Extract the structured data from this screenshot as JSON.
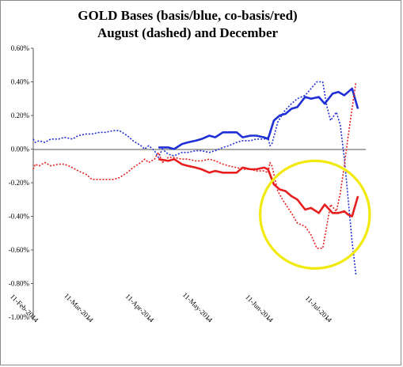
{
  "chart_data": {
    "type": "line",
    "title": "GOLD Bases (basis/blue, co-basis/red)",
    "subtitle": "August (dashed) and December",
    "xlabel": "",
    "ylabel": "",
    "x_dates": [
      "2014-02-11",
      "2014-03-11",
      "2014-04-11",
      "2014-05-11",
      "2014-06-11",
      "2014-07-11"
    ],
    "x_tick_labels": [
      "11-Feb-2014",
      "11-Mar-2014",
      "11-Apr-2014",
      "11-May-2014",
      "11-Jun-2014",
      "11-Jul-2014"
    ],
    "xlim": [
      "2014-02-11",
      "2014-07-31"
    ],
    "ylim": [
      -1.0,
      0.6
    ],
    "y_ticks": [
      0.6,
      0.4,
      0.2,
      0.0,
      -0.2,
      -0.4,
      -0.6,
      -0.8,
      -1.0
    ],
    "y_tick_labels": [
      "0.60%",
      "0.40%",
      "0.20%",
      "0.00%",
      "-0.20%",
      "-0.40%",
      "-0.60%",
      "-0.80%",
      "-1.00%"
    ],
    "grid": false,
    "series": [
      {
        "key": "aug_basis",
        "color": "#1f2fd6",
        "style": "dashed",
        "points": [
          [
            "2014-02-11",
            0.06
          ],
          [
            "2014-02-12",
            0.04
          ],
          [
            "2014-02-14",
            0.05
          ],
          [
            "2014-02-17",
            0.04
          ],
          [
            "2014-02-20",
            0.06
          ],
          [
            "2014-02-24",
            0.06
          ],
          [
            "2014-02-27",
            0.07
          ],
          [
            "2014-03-03",
            0.06
          ],
          [
            "2014-03-06",
            0.08
          ],
          [
            "2014-03-10",
            0.09
          ],
          [
            "2014-03-13",
            0.09
          ],
          [
            "2014-03-17",
            0.1
          ],
          [
            "2014-03-20",
            0.1
          ],
          [
            "2014-03-24",
            0.11
          ],
          [
            "2014-03-27",
            0.11
          ],
          [
            "2014-03-31",
            0.08
          ],
          [
            "2014-04-03",
            0.05
          ],
          [
            "2014-04-07",
            0.02
          ],
          [
            "2014-04-09",
            0.0
          ],
          [
            "2014-04-11",
            0.02
          ],
          [
            "2014-04-14",
            -0.01
          ],
          [
            "2014-04-16",
            -0.05
          ],
          [
            "2014-04-18",
            0.0
          ],
          [
            "2014-04-21",
            -0.03
          ],
          [
            "2014-04-24",
            -0.04
          ],
          [
            "2014-04-28",
            -0.02
          ],
          [
            "2014-05-01",
            -0.02
          ],
          [
            "2014-05-05",
            -0.01
          ],
          [
            "2014-05-08",
            -0.01
          ],
          [
            "2014-05-12",
            -0.02
          ],
          [
            "2014-05-15",
            -0.01
          ],
          [
            "2014-05-19",
            0.01
          ],
          [
            "2014-05-22",
            0.02
          ],
          [
            "2014-05-26",
            0.04
          ],
          [
            "2014-05-29",
            0.05
          ],
          [
            "2014-06-02",
            0.05
          ],
          [
            "2014-06-05",
            0.06
          ],
          [
            "2014-06-09",
            0.06
          ],
          [
            "2014-06-11",
            0.07
          ],
          [
            "2014-06-12",
            0.02
          ],
          [
            "2014-06-13",
            0.03
          ],
          [
            "2014-06-16",
            0.16
          ],
          [
            "2014-06-19",
            0.22
          ],
          [
            "2014-06-23",
            0.27
          ],
          [
            "2014-06-26",
            0.3
          ],
          [
            "2014-06-30",
            0.32
          ],
          [
            "2014-07-03",
            0.36
          ],
          [
            "2014-07-06",
            0.4
          ],
          [
            "2014-07-09",
            0.4
          ],
          [
            "2014-07-11",
            0.26
          ],
          [
            "2014-07-13",
            0.17
          ],
          [
            "2014-07-16",
            0.22
          ],
          [
            "2014-07-18",
            0.14
          ],
          [
            "2014-07-20",
            -0.05
          ],
          [
            "2014-07-22",
            -0.3
          ],
          [
            "2014-07-24",
            -0.55
          ],
          [
            "2014-07-26",
            -0.75
          ]
        ]
      },
      {
        "key": "dec_basis",
        "color": "#1f2fd6",
        "style": "solid",
        "points": [
          [
            "2014-04-16",
            0.01
          ],
          [
            "2014-04-21",
            0.01
          ],
          [
            "2014-04-24",
            0.0
          ],
          [
            "2014-04-28",
            0.03
          ],
          [
            "2014-05-01",
            0.04
          ],
          [
            "2014-05-05",
            0.05
          ],
          [
            "2014-05-08",
            0.06
          ],
          [
            "2014-05-12",
            0.08
          ],
          [
            "2014-05-15",
            0.07
          ],
          [
            "2014-05-19",
            0.1
          ],
          [
            "2014-05-22",
            0.1
          ],
          [
            "2014-05-26",
            0.1
          ],
          [
            "2014-05-29",
            0.07
          ],
          [
            "2014-06-02",
            0.08
          ],
          [
            "2014-06-05",
            0.08
          ],
          [
            "2014-06-09",
            0.07
          ],
          [
            "2014-06-11",
            0.06
          ],
          [
            "2014-06-14",
            0.17
          ],
          [
            "2014-06-17",
            0.2
          ],
          [
            "2014-06-20",
            0.21
          ],
          [
            "2014-06-23",
            0.24
          ],
          [
            "2014-06-26",
            0.25
          ],
          [
            "2014-06-30",
            0.31
          ],
          [
            "2014-07-03",
            0.3
          ],
          [
            "2014-07-07",
            0.31
          ],
          [
            "2014-07-10",
            0.27
          ],
          [
            "2014-07-14",
            0.33
          ],
          [
            "2014-07-17",
            0.34
          ],
          [
            "2014-07-20",
            0.32
          ],
          [
            "2014-07-22",
            0.34
          ],
          [
            "2014-07-24",
            0.36
          ],
          [
            "2014-07-27",
            0.24
          ]
        ]
      },
      {
        "key": "aug_cobasis",
        "color": "#e81e1e",
        "style": "dashed",
        "points": [
          [
            "2014-02-11",
            -0.12
          ],
          [
            "2014-02-12",
            -0.09
          ],
          [
            "2014-02-14",
            -0.1
          ],
          [
            "2014-02-17",
            -0.08
          ],
          [
            "2014-02-20",
            -0.1
          ],
          [
            "2014-02-24",
            -0.09
          ],
          [
            "2014-02-27",
            -0.09
          ],
          [
            "2014-03-03",
            -0.11
          ],
          [
            "2014-03-06",
            -0.13
          ],
          [
            "2014-03-10",
            -0.15
          ],
          [
            "2014-03-13",
            -0.18
          ],
          [
            "2014-03-17",
            -0.18
          ],
          [
            "2014-03-20",
            -0.18
          ],
          [
            "2014-03-24",
            -0.18
          ],
          [
            "2014-03-27",
            -0.17
          ],
          [
            "2014-03-31",
            -0.14
          ],
          [
            "2014-04-03",
            -0.11
          ],
          [
            "2014-04-07",
            -0.08
          ],
          [
            "2014-04-09",
            -0.06
          ],
          [
            "2014-04-11",
            -0.08
          ],
          [
            "2014-04-14",
            -0.06
          ],
          [
            "2014-04-16",
            -0.02
          ],
          [
            "2014-04-18",
            -0.08
          ],
          [
            "2014-04-21",
            -0.05
          ],
          [
            "2014-04-24",
            -0.05
          ],
          [
            "2014-04-28",
            -0.06
          ],
          [
            "2014-05-01",
            -0.06
          ],
          [
            "2014-05-05",
            -0.07
          ],
          [
            "2014-05-08",
            -0.07
          ],
          [
            "2014-05-12",
            -0.06
          ],
          [
            "2014-05-15",
            -0.07
          ],
          [
            "2014-05-19",
            -0.09
          ],
          [
            "2014-05-22",
            -0.1
          ],
          [
            "2014-05-26",
            -0.11
          ],
          [
            "2014-05-29",
            -0.12
          ],
          [
            "2014-06-02",
            -0.12
          ],
          [
            "2014-06-05",
            -0.13
          ],
          [
            "2014-06-09",
            -0.13
          ],
          [
            "2014-06-11",
            -0.14
          ],
          [
            "2014-06-12",
            -0.08
          ],
          [
            "2014-06-13",
            -0.1
          ],
          [
            "2014-06-16",
            -0.25
          ],
          [
            "2014-06-19",
            -0.31
          ],
          [
            "2014-06-23",
            -0.38
          ],
          [
            "2014-06-26",
            -0.44
          ],
          [
            "2014-06-30",
            -0.46
          ],
          [
            "2014-07-03",
            -0.51
          ],
          [
            "2014-07-06",
            -0.59
          ],
          [
            "2014-07-09",
            -0.59
          ],
          [
            "2014-07-11",
            -0.46
          ],
          [
            "2014-07-13",
            -0.33
          ],
          [
            "2014-07-16",
            -0.37
          ],
          [
            "2014-07-18",
            -0.26
          ],
          [
            "2014-07-20",
            -0.1
          ],
          [
            "2014-07-22",
            0.08
          ],
          [
            "2014-07-24",
            0.24
          ],
          [
            "2014-07-26",
            0.4
          ]
        ]
      },
      {
        "key": "dec_cobasis",
        "color": "#e81e1e",
        "style": "solid",
        "points": [
          [
            "2014-04-16",
            -0.06
          ],
          [
            "2014-04-21",
            -0.07
          ],
          [
            "2014-04-24",
            -0.06
          ],
          [
            "2014-04-28",
            -0.09
          ],
          [
            "2014-05-01",
            -0.1
          ],
          [
            "2014-05-05",
            -0.11
          ],
          [
            "2014-05-08",
            -0.12
          ],
          [
            "2014-05-12",
            -0.14
          ],
          [
            "2014-05-15",
            -0.13
          ],
          [
            "2014-05-19",
            -0.14
          ],
          [
            "2014-05-22",
            -0.14
          ],
          [
            "2014-05-26",
            -0.14
          ],
          [
            "2014-05-29",
            -0.11
          ],
          [
            "2014-06-02",
            -0.12
          ],
          [
            "2014-06-05",
            -0.12
          ],
          [
            "2014-06-09",
            -0.11
          ],
          [
            "2014-06-11",
            -0.12
          ],
          [
            "2014-06-14",
            -0.21
          ],
          [
            "2014-06-17",
            -0.24
          ],
          [
            "2014-06-20",
            -0.25
          ],
          [
            "2014-06-23",
            -0.28
          ],
          [
            "2014-06-26",
            -0.3
          ],
          [
            "2014-06-30",
            -0.36
          ],
          [
            "2014-07-03",
            -0.35
          ],
          [
            "2014-07-07",
            -0.38
          ],
          [
            "2014-07-10",
            -0.33
          ],
          [
            "2014-07-14",
            -0.38
          ],
          [
            "2014-07-17",
            -0.38
          ],
          [
            "2014-07-20",
            -0.37
          ],
          [
            "2014-07-22",
            -0.39
          ],
          [
            "2014-07-24",
            -0.4
          ],
          [
            "2014-07-27",
            -0.28
          ]
        ]
      }
    ],
    "annotation": {
      "shape": "ellipse",
      "color": "#f2ea0f",
      "center": [
        "2014-07-05",
        -0.39
      ],
      "radii_days": 28,
      "radii_value": 0.32
    }
  }
}
